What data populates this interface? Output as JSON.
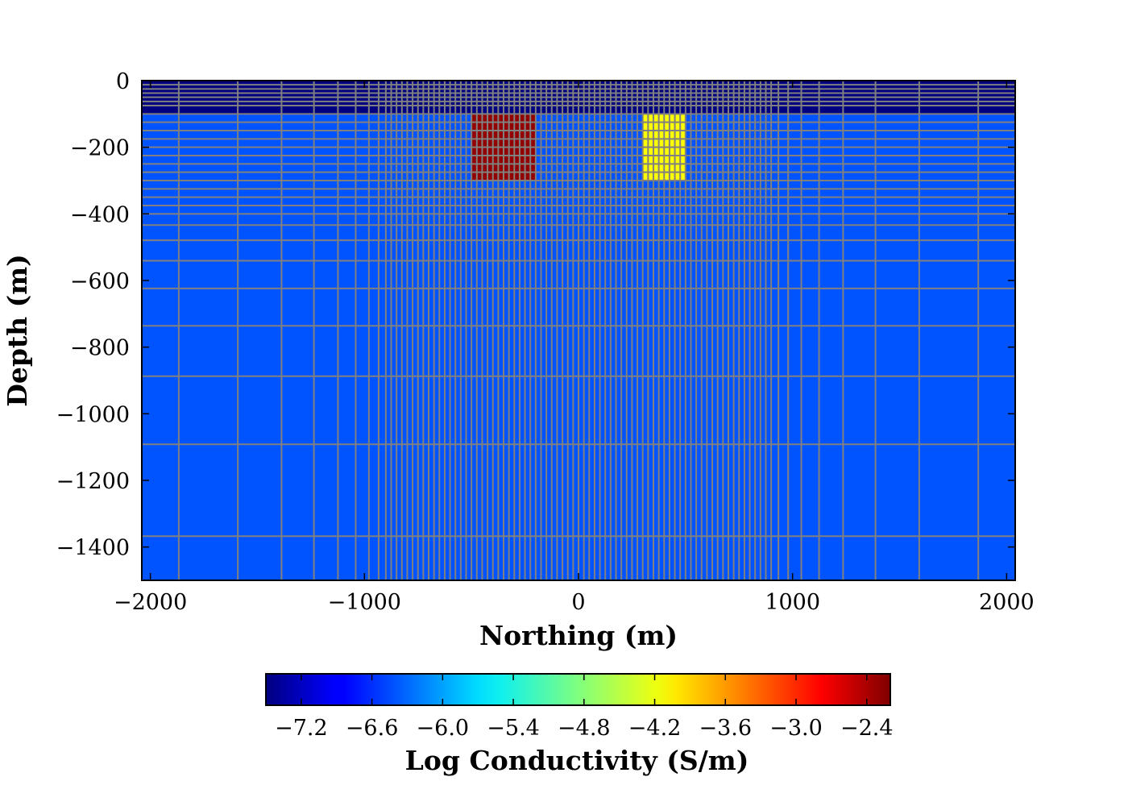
{
  "chart_data": {
    "type": "heatmap",
    "xlabel": "Northing (m)",
    "ylabel": "Depth (m)",
    "colorbar_label": "Log Conductivity (S/m)",
    "colormap": "jet",
    "xlim": [
      -2040,
      2040
    ],
    "ylim": [
      -1500,
      0
    ],
    "x_ticks": [
      -2000,
      -1000,
      0,
      1000,
      2000
    ],
    "x_tick_labels": [
      "−2000",
      "−1000",
      "0",
      "1000",
      "2000"
    ],
    "y_ticks": [
      0,
      -200,
      -400,
      -600,
      -800,
      -1000,
      -1200,
      -1400
    ],
    "y_tick_labels": [
      "0",
      "−200",
      "−400",
      "−600",
      "−800",
      "−1000",
      "−1200",
      "−1400"
    ],
    "colorbar_range": [
      -7.5,
      -2.2
    ],
    "colorbar_ticks": [
      -7.2,
      -6.6,
      -6.0,
      -5.4,
      -4.8,
      -4.2,
      -3.6,
      -3.0,
      -2.4
    ],
    "colorbar_tick_labels": [
      "−7.2",
      "−6.6",
      "−6.0",
      "−5.4",
      "−4.8",
      "−4.2",
      "−3.6",
      "−3.0",
      "−2.4"
    ],
    "mesh_grid": "on",
    "regions": [
      {
        "x": [
          -2040,
          2040
        ],
        "depth": [
          0,
          -100
        ],
        "value": -7.5
      },
      {
        "x": [
          -2040,
          2040
        ],
        "depth": [
          -100,
          -1500
        ],
        "value": -6.4
      },
      {
        "x": [
          -500,
          -200
        ],
        "depth": [
          -100,
          -300
        ],
        "value": -2.3
      },
      {
        "x": [
          300,
          500
        ],
        "depth": [
          -100,
          -300
        ],
        "value": -4.2
      }
    ]
  }
}
